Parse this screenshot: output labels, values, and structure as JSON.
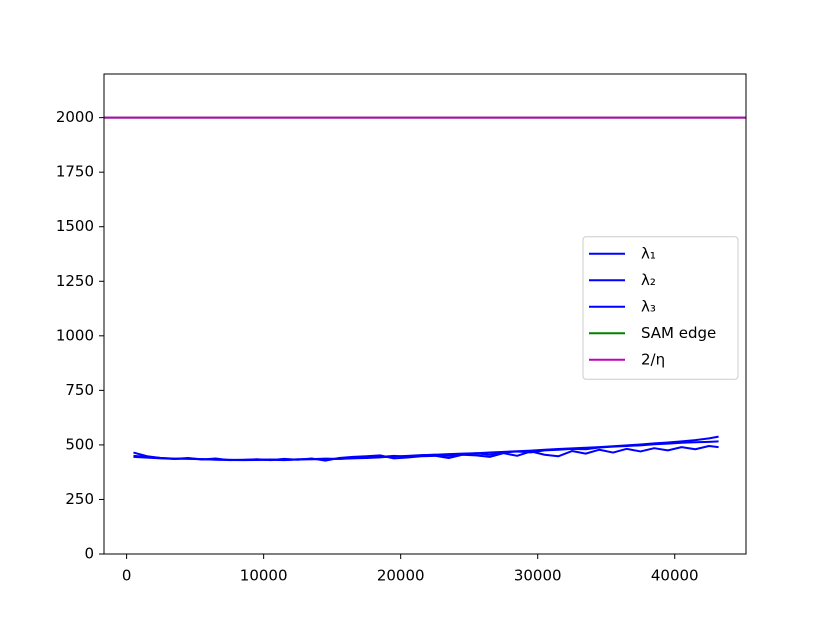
{
  "chart_data": {
    "type": "line",
    "x": [
      500,
      1500,
      2500,
      3500,
      4500,
      5500,
      6500,
      7500,
      8500,
      9500,
      10500,
      11500,
      12500,
      13500,
      14500,
      15500,
      16500,
      17500,
      18500,
      19500,
      20500,
      21500,
      22500,
      23500,
      24500,
      25500,
      26500,
      27500,
      28500,
      29500,
      30500,
      31500,
      32500,
      33500,
      34500,
      35500,
      36500,
      37500,
      38500,
      39500,
      40500,
      41500,
      42500,
      43200
    ],
    "series": [
      {
        "name": "λ₁",
        "color": "#0000ff",
        "values": [
          465,
          448,
          440,
          436,
          438,
          435,
          432,
          431,
          430,
          431,
          432,
          430,
          433,
          434,
          435,
          436,
          438,
          440,
          443,
          447,
          450,
          453,
          455,
          458,
          460,
          462,
          465,
          468,
          471,
          474,
          478,
          481,
          484,
          487,
          490,
          494,
          498,
          502,
          507,
          511,
          516,
          522,
          530,
          538
        ]
      },
      {
        "name": "λ₂",
        "color": "#0000ff",
        "values": [
          450,
          445,
          440,
          437,
          436,
          434,
          433,
          432,
          431,
          432,
          433,
          431,
          434,
          435,
          437,
          436,
          440,
          442,
          445,
          450,
          446,
          452,
          455,
          450,
          458,
          462,
          455,
          465,
          470,
          466,
          475,
          478,
          482,
          480,
          488,
          492,
          495,
          498,
          503,
          506,
          510,
          512,
          514,
          516
        ]
      },
      {
        "name": "λ₃",
        "color": "#0000ff",
        "values": [
          445,
          442,
          438,
          436,
          440,
          433,
          438,
          430,
          432,
          434,
          430,
          436,
          432,
          438,
          428,
          440,
          445,
          448,
          452,
          438,
          442,
          448,
          450,
          440,
          455,
          452,
          445,
          462,
          450,
          470,
          455,
          448,
          472,
          460,
          478,
          465,
          482,
          470,
          485,
          475,
          490,
          480,
          495,
          490
        ]
      },
      {
        "name": "SAM edge",
        "color": "#008000",
        "y": 2000
      },
      {
        "name": "2/η",
        "color": "#bf00bf",
        "y": 2000
      }
    ],
    "xlim": [
      -1650,
      45200
    ],
    "ylim": [
      0,
      2200
    ],
    "xticks": [
      0,
      10000,
      20000,
      30000,
      40000
    ],
    "yticks": [
      0,
      250,
      500,
      750,
      1000,
      1250,
      1500,
      1750,
      2000
    ],
    "grid": false,
    "legend": "center right"
  }
}
